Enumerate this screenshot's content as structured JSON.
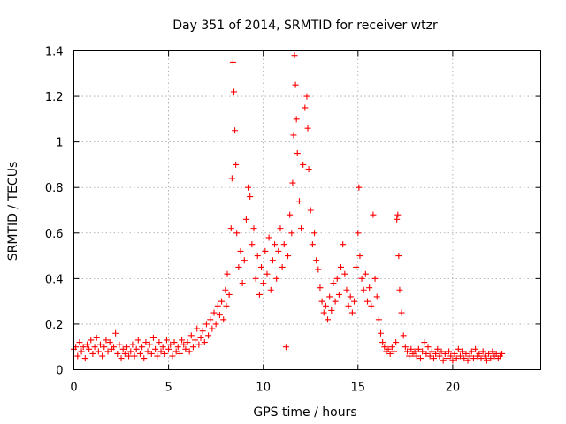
{
  "chart_data": {
    "type": "scatter",
    "title": "Day 351 of 2014, SRMTID for receiver wtzr",
    "xlabel": "GPS time / hours",
    "ylabel": "SRMTID / TECUs",
    "xlim": [
      0,
      24.65
    ],
    "ylim": [
      0,
      1.4
    ],
    "grid": true,
    "legend": "none",
    "marker": "plus",
    "series_color": "#ff0000",
    "x_ticks": [
      {
        "value": 0,
        "label": "0"
      },
      {
        "value": 5,
        "label": "5"
      },
      {
        "value": 10,
        "label": "10"
      },
      {
        "value": 15,
        "label": "15"
      },
      {
        "value": 20,
        "label": "20"
      }
    ],
    "y_ticks": [
      {
        "value": 0,
        "label": "0"
      },
      {
        "value": 0.2,
        "label": "0.2"
      },
      {
        "value": 0.4,
        "label": "0.4"
      },
      {
        "value": 0.6,
        "label": "0.6"
      },
      {
        "value": 0.8,
        "label": "0.8"
      },
      {
        "value": 1,
        "label": "1"
      },
      {
        "value": 1.2,
        "label": "1.2"
      },
      {
        "value": 1.4,
        "label": "1.4"
      }
    ],
    "series": [
      {
        "name": "SRMTID",
        "points": [
          [
            0.0,
            0.09
          ],
          [
            0.1,
            0.1
          ],
          [
            0.2,
            0.06
          ],
          [
            0.3,
            0.12
          ],
          [
            0.4,
            0.08
          ],
          [
            0.5,
            0.1
          ],
          [
            0.6,
            0.05
          ],
          [
            0.7,
            0.11
          ],
          [
            0.8,
            0.09
          ],
          [
            0.9,
            0.13
          ],
          [
            1.0,
            0.07
          ],
          [
            1.1,
            0.1
          ],
          [
            1.2,
            0.14
          ],
          [
            1.3,
            0.08
          ],
          [
            1.4,
            0.11
          ],
          [
            1.5,
            0.06
          ],
          [
            1.6,
            0.1
          ],
          [
            1.7,
            0.13
          ],
          [
            1.8,
            0.08
          ],
          [
            1.9,
            0.12
          ],
          [
            2.0,
            0.09
          ],
          [
            2.1,
            0.1
          ],
          [
            2.2,
            0.16
          ],
          [
            2.3,
            0.07
          ],
          [
            2.4,
            0.11
          ],
          [
            2.5,
            0.05
          ],
          [
            2.6,
            0.09
          ],
          [
            2.7,
            0.07
          ],
          [
            2.8,
            0.1
          ],
          [
            2.9,
            0.06
          ],
          [
            3.0,
            0.08
          ],
          [
            3.1,
            0.11
          ],
          [
            3.2,
            0.06
          ],
          [
            3.3,
            0.09
          ],
          [
            3.4,
            0.13
          ],
          [
            3.5,
            0.07
          ],
          [
            3.6,
            0.1
          ],
          [
            3.7,
            0.05
          ],
          [
            3.8,
            0.12
          ],
          [
            3.9,
            0.08
          ],
          [
            4.0,
            0.11
          ],
          [
            4.1,
            0.07
          ],
          [
            4.2,
            0.14
          ],
          [
            4.3,
            0.09
          ],
          [
            4.4,
            0.06
          ],
          [
            4.5,
            0.12
          ],
          [
            4.6,
            0.08
          ],
          [
            4.7,
            0.1
          ],
          [
            4.8,
            0.07
          ],
          [
            4.9,
            0.13
          ],
          [
            5.0,
            0.09
          ],
          [
            5.1,
            0.11
          ],
          [
            5.2,
            0.06
          ],
          [
            5.3,
            0.12
          ],
          [
            5.4,
            0.08
          ],
          [
            5.5,
            0.1
          ],
          [
            5.6,
            0.07
          ],
          [
            5.7,
            0.13
          ],
          [
            5.8,
            0.11
          ],
          [
            5.9,
            0.09
          ],
          [
            6.0,
            0.12
          ],
          [
            6.1,
            0.08
          ],
          [
            6.2,
            0.15
          ],
          [
            6.3,
            0.1
          ],
          [
            6.4,
            0.13
          ],
          [
            6.5,
            0.18
          ],
          [
            6.6,
            0.11
          ],
          [
            6.7,
            0.14
          ],
          [
            6.8,
            0.17
          ],
          [
            6.9,
            0.12
          ],
          [
            7.0,
            0.2
          ],
          [
            7.1,
            0.15
          ],
          [
            7.2,
            0.22
          ],
          [
            7.3,
            0.18
          ],
          [
            7.4,
            0.25
          ],
          [
            7.5,
            0.2
          ],
          [
            7.6,
            0.28
          ],
          [
            7.7,
            0.24
          ],
          [
            7.8,
            0.3
          ],
          [
            7.9,
            0.22
          ],
          [
            8.0,
            0.35
          ],
          [
            8.05,
            0.28
          ],
          [
            8.1,
            0.42
          ],
          [
            8.2,
            0.33
          ],
          [
            8.3,
            0.62
          ],
          [
            8.35,
            0.84
          ],
          [
            8.4,
            1.35
          ],
          [
            8.45,
            1.22
          ],
          [
            8.5,
            1.05
          ],
          [
            8.55,
            0.9
          ],
          [
            8.6,
            0.6
          ],
          [
            8.7,
            0.45
          ],
          [
            8.8,
            0.52
          ],
          [
            8.9,
            0.38
          ],
          [
            9.0,
            0.48
          ],
          [
            9.1,
            0.66
          ],
          [
            9.2,
            0.8
          ],
          [
            9.3,
            0.76
          ],
          [
            9.4,
            0.55
          ],
          [
            9.5,
            0.62
          ],
          [
            9.6,
            0.4
          ],
          [
            9.7,
            0.5
          ],
          [
            9.8,
            0.33
          ],
          [
            9.9,
            0.45
          ],
          [
            10.0,
            0.38
          ],
          [
            10.1,
            0.52
          ],
          [
            10.2,
            0.42
          ],
          [
            10.3,
            0.58
          ],
          [
            10.4,
            0.35
          ],
          [
            10.5,
            0.48
          ],
          [
            10.6,
            0.55
          ],
          [
            10.7,
            0.4
          ],
          [
            10.8,
            0.52
          ],
          [
            10.9,
            0.62
          ],
          [
            11.0,
            0.45
          ],
          [
            11.1,
            0.55
          ],
          [
            11.2,
            0.1
          ],
          [
            11.3,
            0.5
          ],
          [
            11.4,
            0.68
          ],
          [
            11.5,
            0.6
          ],
          [
            11.55,
            0.82
          ],
          [
            11.6,
            1.03
          ],
          [
            11.65,
            1.38
          ],
          [
            11.7,
            1.25
          ],
          [
            11.75,
            1.1
          ],
          [
            11.8,
            0.95
          ],
          [
            11.9,
            0.74
          ],
          [
            12.0,
            0.62
          ],
          [
            12.1,
            0.9
          ],
          [
            12.2,
            1.15
          ],
          [
            12.3,
            1.2
          ],
          [
            12.35,
            1.06
          ],
          [
            12.4,
            0.88
          ],
          [
            12.5,
            0.7
          ],
          [
            12.6,
            0.55
          ],
          [
            12.7,
            0.6
          ],
          [
            12.8,
            0.48
          ],
          [
            12.9,
            0.44
          ],
          [
            13.0,
            0.36
          ],
          [
            13.1,
            0.3
          ],
          [
            13.2,
            0.25
          ],
          [
            13.3,
            0.28
          ],
          [
            13.4,
            0.22
          ],
          [
            13.5,
            0.32
          ],
          [
            13.6,
            0.26
          ],
          [
            13.7,
            0.38
          ],
          [
            13.8,
            0.3
          ],
          [
            13.9,
            0.4
          ],
          [
            14.0,
            0.33
          ],
          [
            14.1,
            0.45
          ],
          [
            14.2,
            0.55
          ],
          [
            14.3,
            0.42
          ],
          [
            14.4,
            0.35
          ],
          [
            14.5,
            0.28
          ],
          [
            14.6,
            0.32
          ],
          [
            14.7,
            0.25
          ],
          [
            14.8,
            0.3
          ],
          [
            14.9,
            0.45
          ],
          [
            15.0,
            0.6
          ],
          [
            15.05,
            0.8
          ],
          [
            15.1,
            0.5
          ],
          [
            15.2,
            0.4
          ],
          [
            15.3,
            0.35
          ],
          [
            15.4,
            0.42
          ],
          [
            15.5,
            0.3
          ],
          [
            15.6,
            0.36
          ],
          [
            15.7,
            0.28
          ],
          [
            15.8,
            0.68
          ],
          [
            15.9,
            0.4
          ],
          [
            16.0,
            0.32
          ],
          [
            16.1,
            0.22
          ],
          [
            16.2,
            0.16
          ],
          [
            16.3,
            0.12
          ],
          [
            16.4,
            0.1
          ],
          [
            16.5,
            0.08
          ],
          [
            16.6,
            0.09
          ],
          [
            16.7,
            0.07
          ],
          [
            16.8,
            0.1
          ],
          [
            16.9,
            0.08
          ],
          [
            17.0,
            0.12
          ],
          [
            17.05,
            0.66
          ],
          [
            17.1,
            0.68
          ],
          [
            17.15,
            0.5
          ],
          [
            17.2,
            0.35
          ],
          [
            17.3,
            0.25
          ],
          [
            17.4,
            0.15
          ],
          [
            17.5,
            0.1
          ],
          [
            17.6,
            0.08
          ],
          [
            17.7,
            0.06
          ],
          [
            17.8,
            0.09
          ],
          [
            17.9,
            0.07
          ],
          [
            18.0,
            0.08
          ],
          [
            18.1,
            0.06
          ],
          [
            18.2,
            0.09
          ],
          [
            18.3,
            0.05
          ],
          [
            18.4,
            0.08
          ],
          [
            18.5,
            0.12
          ],
          [
            18.6,
            0.07
          ],
          [
            18.7,
            0.1
          ],
          [
            18.8,
            0.06
          ],
          [
            18.9,
            0.08
          ],
          [
            19.0,
            0.05
          ],
          [
            19.1,
            0.07
          ],
          [
            19.2,
            0.09
          ],
          [
            19.3,
            0.06
          ],
          [
            19.4,
            0.08
          ],
          [
            19.5,
            0.04
          ],
          [
            19.6,
            0.07
          ],
          [
            19.7,
            0.05
          ],
          [
            19.8,
            0.08
          ],
          [
            19.9,
            0.06
          ],
          [
            20.0,
            0.04
          ],
          [
            20.1,
            0.07
          ],
          [
            20.2,
            0.05
          ],
          [
            20.3,
            0.09
          ],
          [
            20.4,
            0.06
          ],
          [
            20.5,
            0.08
          ],
          [
            20.6,
            0.05
          ],
          [
            20.7,
            0.07
          ],
          [
            20.8,
            0.04
          ],
          [
            20.9,
            0.06
          ],
          [
            21.0,
            0.08
          ],
          [
            21.1,
            0.05
          ],
          [
            21.2,
            0.09
          ],
          [
            21.3,
            0.06
          ],
          [
            21.4,
            0.07
          ],
          [
            21.5,
            0.05
          ],
          [
            21.6,
            0.08
          ],
          [
            21.7,
            0.06
          ],
          [
            21.8,
            0.04
          ],
          [
            21.9,
            0.07
          ],
          [
            22.0,
            0.05
          ],
          [
            22.1,
            0.08
          ],
          [
            22.2,
            0.06
          ],
          [
            22.3,
            0.07
          ],
          [
            22.4,
            0.05
          ],
          [
            22.5,
            0.06
          ],
          [
            22.6,
            0.07
          ]
        ]
      }
    ]
  }
}
